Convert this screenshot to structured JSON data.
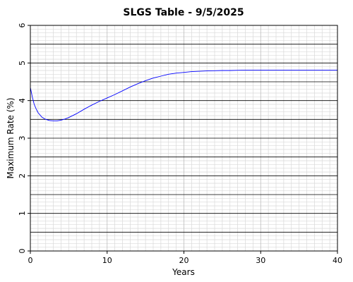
{
  "chart_data": {
    "type": "line",
    "title": "SLGS Table - 9/5/2025",
    "xlabel": "Years",
    "ylabel": "Maximum Rate (%)",
    "xlim": [
      0,
      40
    ],
    "ylim": [
      0,
      6
    ],
    "x_ticks": [
      "0",
      "10",
      "20",
      "30",
      "40"
    ],
    "y_ticks": [
      "0",
      "1",
      "2",
      "3",
      "4",
      "5",
      "6"
    ],
    "grid": true,
    "colors": {
      "line": "#0000ff",
      "major_grid": "#000000",
      "minor_grid": "#d9d9d9"
    },
    "series": [
      {
        "x": [
          0,
          0.25,
          0.5,
          0.75,
          1,
          1.5,
          2,
          2.5,
          3,
          3.5,
          4,
          4.5,
          5,
          6,
          7,
          8,
          9,
          10,
          11,
          12,
          13,
          14,
          15,
          16,
          17,
          18,
          19,
          20,
          21,
          22,
          23,
          24,
          25,
          26,
          27,
          28,
          29,
          30,
          32,
          34,
          36,
          38,
          40
        ],
        "values": [
          4.35,
          4.1,
          3.9,
          3.78,
          3.68,
          3.56,
          3.5,
          3.47,
          3.46,
          3.46,
          3.48,
          3.51,
          3.55,
          3.65,
          3.77,
          3.88,
          3.98,
          4.07,
          4.16,
          4.26,
          4.36,
          4.45,
          4.53,
          4.6,
          4.65,
          4.7,
          4.73,
          4.75,
          4.77,
          4.78,
          4.79,
          4.795,
          4.8,
          4.8,
          4.805,
          4.81,
          4.81,
          4.81,
          4.81,
          4.81,
          4.81,
          4.81,
          4.81
        ]
      }
    ]
  }
}
